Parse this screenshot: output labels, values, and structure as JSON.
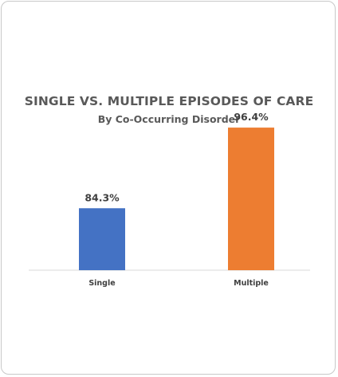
{
  "chart_data": {
    "type": "bar",
    "title": "SINGLE VS. MULTIPLE EPISODES OF CARE",
    "subtitle": "By Co-Occurring Disorder",
    "categories": [
      "Single",
      "Multiple"
    ],
    "values": [
      84.3,
      96.4
    ],
    "data_labels": [
      "84.3%",
      "96.4%"
    ],
    "colors": [
      "#4472c4",
      "#ed7d31"
    ],
    "ylim": [
      75,
      100
    ],
    "grid": false,
    "legend": "none"
  }
}
